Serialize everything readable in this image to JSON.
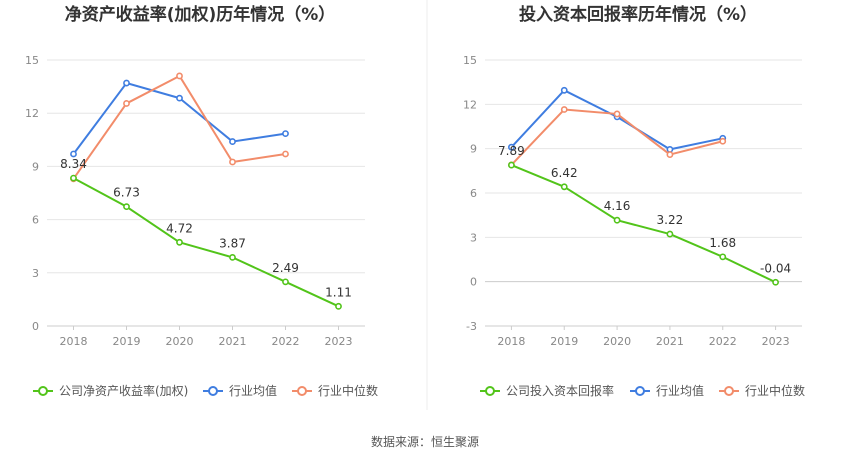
{
  "footer": {
    "source": "数据来源：恒生聚源"
  },
  "colors": {
    "company": "#52c41a",
    "industry_avg": "#3f7de0",
    "industry_median": "#f28c6a",
    "grid": "#e6e6e6",
    "divider": "#eeeeee"
  },
  "chart_data": [
    {
      "type": "line",
      "title": "净资产收益率(加权)历年情况（%）",
      "xlabel": "",
      "ylabel": "",
      "categories": [
        "2018",
        "2019",
        "2020",
        "2021",
        "2022",
        "2023"
      ],
      "ylim": [
        0,
        15
      ],
      "yticks": [
        0,
        3,
        6,
        9,
        12,
        15
      ],
      "grid": true,
      "legend_position": "bottom",
      "series": [
        {
          "name": "公司净资产收益率(加权)",
          "color": "#52c41a",
          "values": [
            8.34,
            6.73,
            4.72,
            3.87,
            2.49,
            1.11
          ],
          "labels": [
            "8.34",
            "6.73",
            "4.72",
            "3.87",
            "2.49",
            "1.11"
          ]
        },
        {
          "name": "行业均值",
          "color": "#3f7de0",
          "values": [
            9.7,
            13.7,
            12.85,
            10.4,
            10.85,
            null
          ]
        },
        {
          "name": "行业中位数",
          "color": "#f28c6a",
          "values": [
            8.3,
            12.55,
            14.1,
            9.25,
            9.7,
            null
          ]
        }
      ]
    },
    {
      "type": "line",
      "title": "投入资本回报率历年情况（%）",
      "xlabel": "",
      "ylabel": "",
      "categories": [
        "2018",
        "2019",
        "2020",
        "2021",
        "2022",
        "2023"
      ],
      "ylim": [
        -3,
        15
      ],
      "yticks": [
        -3,
        0,
        3,
        6,
        9,
        12,
        15
      ],
      "grid": true,
      "legend_position": "bottom",
      "series": [
        {
          "name": "公司投入资本回报率",
          "color": "#52c41a",
          "values": [
            7.89,
            6.42,
            4.16,
            3.22,
            1.68,
            -0.04
          ],
          "labels": [
            "7.89",
            "6.42",
            "4.16",
            "3.22",
            "1.68",
            "-0.04"
          ]
        },
        {
          "name": "行业均值",
          "color": "#3f7de0",
          "values": [
            9.1,
            12.95,
            11.15,
            8.95,
            9.7,
            null
          ]
        },
        {
          "name": "行业中位数",
          "color": "#f28c6a",
          "values": [
            7.9,
            11.65,
            11.35,
            8.6,
            9.5,
            null
          ]
        }
      ]
    }
  ]
}
